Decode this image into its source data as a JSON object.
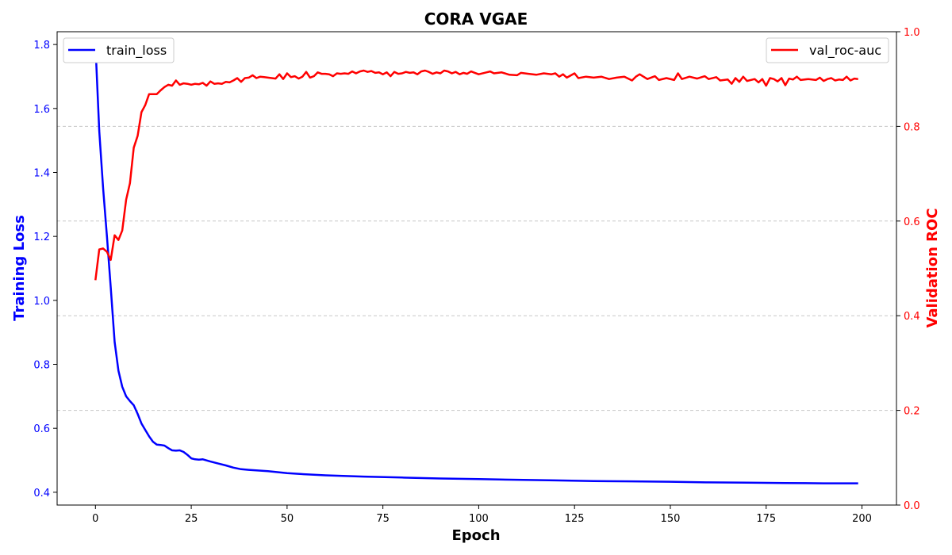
{
  "chart_data": {
    "type": "line",
    "title": "CORA VGAE",
    "xlabel": "Epoch",
    "ylabel_left": "Training Loss",
    "ylabel_right": "Validation ROC",
    "xlim": [
      -10,
      209
    ],
    "ylim_left": [
      0.36,
      1.84
    ],
    "ylim_right": [
      0.0,
      1.0
    ],
    "xticks": [
      0,
      25,
      50,
      75,
      100,
      125,
      150,
      175,
      200
    ],
    "yticks_left": [
      0.4,
      0.6,
      0.8,
      1.0,
      1.2,
      1.4,
      1.6,
      1.8
    ],
    "yticks_right": [
      0.0,
      0.2,
      0.4,
      0.6,
      0.8,
      1.0
    ],
    "grid": "horizontal dashed (right axis)",
    "series": [
      {
        "name": "train_loss",
        "axis": "left",
        "color": "#0000ff",
        "legend": "top-left",
        "points": [
          [
            0,
            1.8
          ],
          [
            1,
            1.53
          ],
          [
            2,
            1.35
          ],
          [
            3,
            1.2
          ],
          [
            4,
            1.04
          ],
          [
            5,
            0.87
          ],
          [
            6,
            0.78
          ],
          [
            7,
            0.73
          ],
          [
            8,
            0.7
          ],
          [
            9,
            0.685
          ],
          [
            10,
            0.672
          ],
          [
            11,
            0.645
          ],
          [
            12,
            0.615
          ],
          [
            13,
            0.595
          ],
          [
            14,
            0.575
          ],
          [
            15,
            0.558
          ],
          [
            16,
            0.549
          ],
          [
            17,
            0.548
          ],
          [
            18,
            0.546
          ],
          [
            19,
            0.538
          ],
          [
            20,
            0.531
          ],
          [
            21,
            0.53
          ],
          [
            22,
            0.531
          ],
          [
            23,
            0.526
          ],
          [
            24,
            0.517
          ],
          [
            25,
            0.506
          ],
          [
            26,
            0.503
          ],
          [
            27,
            0.502
          ],
          [
            28,
            0.503
          ],
          [
            30,
            0.496
          ],
          [
            32,
            0.49
          ],
          [
            34,
            0.484
          ],
          [
            36,
            0.477
          ],
          [
            38,
            0.472
          ],
          [
            40,
            0.47
          ],
          [
            45,
            0.466
          ],
          [
            50,
            0.46
          ],
          [
            55,
            0.456
          ],
          [
            60,
            0.453
          ],
          [
            70,
            0.449
          ],
          [
            80,
            0.446
          ],
          [
            90,
            0.443
          ],
          [
            100,
            0.441
          ],
          [
            110,
            0.439
          ],
          [
            120,
            0.437
          ],
          [
            130,
            0.435
          ],
          [
            140,
            0.434
          ],
          [
            150,
            0.433
          ],
          [
            160,
            0.431
          ],
          [
            170,
            0.43
          ],
          [
            180,
            0.429
          ],
          [
            190,
            0.428
          ],
          [
            199,
            0.428
          ]
        ]
      },
      {
        "name": "val_roc-auc",
        "axis": "right",
        "color": "#ff0000",
        "legend": "top-right",
        "points": [
          [
            0,
            0.475
          ],
          [
            1,
            0.54
          ],
          [
            2,
            0.542
          ],
          [
            3,
            0.535
          ],
          [
            4,
            0.518
          ],
          [
            5,
            0.57
          ],
          [
            6,
            0.56
          ],
          [
            7,
            0.58
          ],
          [
            8,
            0.645
          ],
          [
            9,
            0.68
          ],
          [
            10,
            0.755
          ],
          [
            11,
            0.78
          ],
          [
            12,
            0.83
          ],
          [
            13,
            0.845
          ],
          [
            14,
            0.868
          ],
          [
            15,
            0.868
          ],
          [
            16,
            0.868
          ],
          [
            17,
            0.876
          ],
          [
            18,
            0.883
          ],
          [
            19,
            0.888
          ],
          [
            20,
            0.886
          ],
          [
            21,
            0.897
          ],
          [
            22,
            0.888
          ],
          [
            23,
            0.891
          ],
          [
            24,
            0.89
          ],
          [
            25,
            0.888
          ],
          [
            26,
            0.89
          ],
          [
            27,
            0.889
          ],
          [
            28,
            0.892
          ],
          [
            29,
            0.886
          ],
          [
            30,
            0.895
          ],
          [
            31,
            0.89
          ],
          [
            32,
            0.891
          ],
          [
            33,
            0.89
          ],
          [
            34,
            0.894
          ],
          [
            35,
            0.893
          ],
          [
            36,
            0.897
          ],
          [
            37,
            0.902
          ],
          [
            38,
            0.894
          ],
          [
            39,
            0.902
          ],
          [
            40,
            0.903
          ],
          [
            41,
            0.908
          ],
          [
            42,
            0.902
          ],
          [
            43,
            0.905
          ],
          [
            44,
            0.904
          ],
          [
            45,
            0.903
          ],
          [
            46,
            0.902
          ],
          [
            47,
            0.901
          ],
          [
            48,
            0.91
          ],
          [
            49,
            0.9
          ],
          [
            50,
            0.912
          ],
          [
            51,
            0.904
          ],
          [
            52,
            0.906
          ],
          [
            53,
            0.901
          ],
          [
            54,
            0.905
          ],
          [
            55,
            0.915
          ],
          [
            56,
            0.903
          ],
          [
            57,
            0.906
          ],
          [
            58,
            0.914
          ],
          [
            59,
            0.911
          ],
          [
            60,
            0.911
          ],
          [
            61,
            0.91
          ],
          [
            62,
            0.906
          ],
          [
            63,
            0.912
          ],
          [
            64,
            0.911
          ],
          [
            65,
            0.912
          ],
          [
            66,
            0.911
          ],
          [
            67,
            0.916
          ],
          [
            68,
            0.912
          ],
          [
            69,
            0.916
          ],
          [
            70,
            0.918
          ],
          [
            71,
            0.915
          ],
          [
            72,
            0.917
          ],
          [
            73,
            0.913
          ],
          [
            74,
            0.914
          ],
          [
            75,
            0.91
          ],
          [
            76,
            0.914
          ],
          [
            77,
            0.906
          ],
          [
            78,
            0.915
          ],
          [
            79,
            0.911
          ],
          [
            80,
            0.912
          ],
          [
            81,
            0.915
          ],
          [
            82,
            0.913
          ],
          [
            83,
            0.914
          ],
          [
            84,
            0.91
          ],
          [
            85,
            0.916
          ],
          [
            86,
            0.918
          ],
          [
            87,
            0.915
          ],
          [
            88,
            0.911
          ],
          [
            89,
            0.914
          ],
          [
            90,
            0.912
          ],
          [
            91,
            0.918
          ],
          [
            92,
            0.916
          ],
          [
            93,
            0.912
          ],
          [
            94,
            0.915
          ],
          [
            95,
            0.91
          ],
          [
            96,
            0.913
          ],
          [
            97,
            0.911
          ],
          [
            98,
            0.916
          ],
          [
            99,
            0.913
          ],
          [
            100,
            0.91
          ],
          [
            102,
            0.914
          ],
          [
            103,
            0.916
          ],
          [
            104,
            0.912
          ],
          [
            106,
            0.914
          ],
          [
            108,
            0.909
          ],
          [
            110,
            0.908
          ],
          [
            111,
            0.913
          ],
          [
            113,
            0.911
          ],
          [
            115,
            0.909
          ],
          [
            117,
            0.912
          ],
          [
            119,
            0.91
          ],
          [
            120,
            0.912
          ],
          [
            121,
            0.905
          ],
          [
            122,
            0.91
          ],
          [
            123,
            0.903
          ],
          [
            125,
            0.912
          ],
          [
            126,
            0.902
          ],
          [
            128,
            0.905
          ],
          [
            130,
            0.903
          ],
          [
            132,
            0.905
          ],
          [
            134,
            0.9
          ],
          [
            136,
            0.903
          ],
          [
            138,
            0.905
          ],
          [
            140,
            0.897
          ],
          [
            141,
            0.905
          ],
          [
            142,
            0.91
          ],
          [
            144,
            0.9
          ],
          [
            146,
            0.906
          ],
          [
            147,
            0.898
          ],
          [
            149,
            0.902
          ],
          [
            151,
            0.898
          ],
          [
            152,
            0.912
          ],
          [
            153,
            0.9
          ],
          [
            155,
            0.905
          ],
          [
            157,
            0.901
          ],
          [
            159,
            0.906
          ],
          [
            160,
            0.9
          ],
          [
            162,
            0.904
          ],
          [
            163,
            0.897
          ],
          [
            165,
            0.899
          ],
          [
            166,
            0.89
          ],
          [
            167,
            0.902
          ],
          [
            168,
            0.894
          ],
          [
            169,
            0.905
          ],
          [
            170,
            0.896
          ],
          [
            172,
            0.9
          ],
          [
            173,
            0.893
          ],
          [
            174,
            0.9
          ],
          [
            175,
            0.886
          ],
          [
            176,
            0.902
          ],
          [
            177,
            0.9
          ],
          [
            178,
            0.895
          ],
          [
            179,
            0.902
          ],
          [
            180,
            0.887
          ],
          [
            181,
            0.901
          ],
          [
            182,
            0.899
          ],
          [
            183,
            0.905
          ],
          [
            184,
            0.898
          ],
          [
            186,
            0.9
          ],
          [
            188,
            0.898
          ],
          [
            189,
            0.903
          ],
          [
            190,
            0.896
          ],
          [
            191,
            0.9
          ],
          [
            192,
            0.902
          ],
          [
            193,
            0.897
          ],
          [
            194,
            0.899
          ],
          [
            195,
            0.898
          ],
          [
            196,
            0.905
          ],
          [
            197,
            0.897
          ],
          [
            198,
            0.901
          ],
          [
            199,
            0.9
          ]
        ]
      }
    ]
  }
}
